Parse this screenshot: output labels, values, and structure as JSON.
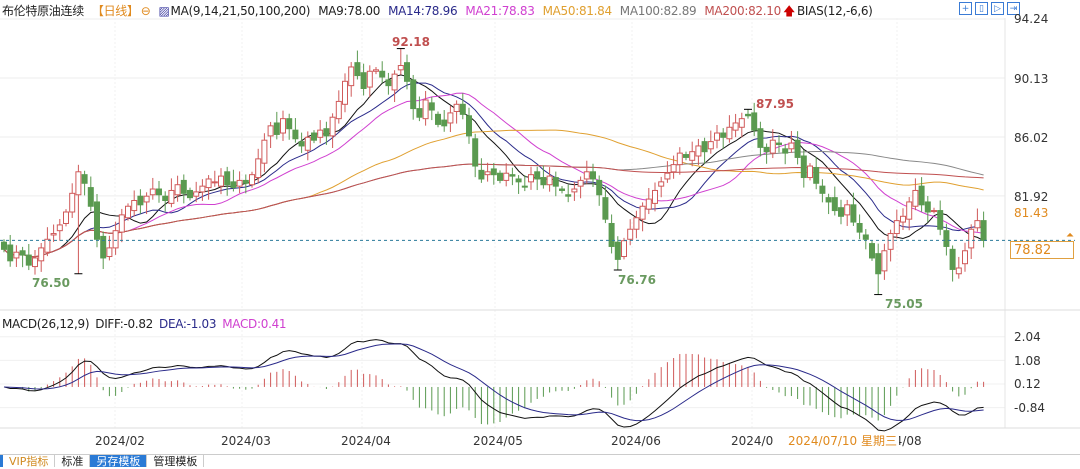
{
  "header": {
    "title": "布伦特原油连续",
    "period": "【日线】",
    "ma_label": "MA(9,14,21,50,100,200)",
    "ma": [
      {
        "text": "MA9:78.00",
        "color": "#222222"
      },
      {
        "text": "MA14:78.96",
        "color": "#2a2a8a"
      },
      {
        "text": "MA21:78.83",
        "color": "#d040d0"
      },
      {
        "text": "MA50:81.84",
        "color": "#e0a030"
      },
      {
        "text": "MA100:82.89",
        "color": "#777777"
      },
      {
        "text": "MA200:82.10",
        "color": "#c05050"
      }
    ],
    "bias_label": "BIAS(12,-6,6)",
    "tool_icons": [
      "crosshair-icon",
      "zoom-in-icon",
      "play-icon",
      "exit-icon"
    ]
  },
  "price_axis": {
    "ticks": [
      "94.24",
      "90.13",
      "86.02",
      "81.92"
    ],
    "tick_values": [
      94.24,
      90.13,
      86.02,
      81.92
    ],
    "marker_label": "81.43",
    "current_price": "78.82"
  },
  "annotations": {
    "high1": "92.18",
    "low1": "76.50",
    "low2": "76.76",
    "high2": "87.95",
    "low3": "75.05"
  },
  "macd": {
    "label": "MACD(26,12,9)",
    "diff": "DIFF:-0.82",
    "dea": "DEA:-1.03",
    "macd": "MACD:0.41",
    "ticks": [
      "2.04",
      "1.08",
      "0.12",
      "-0.84"
    ],
    "tick_values": [
      2.04,
      1.08,
      0.12,
      -0.84
    ]
  },
  "date_axis": {
    "labels": [
      "2024/02",
      "2024/03",
      "2024/04",
      "2024/05",
      "2024/06",
      "2024/0",
      "24/08"
    ],
    "crosshair_date": "2024/07/10 星期三"
  },
  "tabs": [
    "VIP指标",
    "标准",
    "另存模板",
    "管理模板"
  ],
  "colors": {
    "up": "#d05a5a",
    "down": "#5a9a50",
    "dashed": "#2a7a9a",
    "accent": "#e08a1e"
  },
  "chart_data": {
    "type": "candlestick",
    "title": "布伦特原油连续 日线",
    "ylim": [
      73.5,
      95.0
    ],
    "close": [
      78.2,
      77.4,
      78.0,
      77.8,
      77.1,
      77.6,
      78.3,
      78.9,
      79.3,
      79.9,
      80.8,
      82.1,
      83.6,
      82.8,
      81.2,
      78.9,
      77.6,
      78.3,
      79.5,
      80.6,
      81.2,
      81.6,
      81.3,
      81.9,
      82.4,
      82.0,
      81.6,
      82.3,
      82.7,
      82.1,
      81.8,
      82.2,
      82.6,
      83.1,
      82.9,
      83.3,
      82.7,
      82.5,
      83.0,
      82.8,
      83.4,
      84.5,
      85.8,
      86.8,
      86.2,
      87.3,
      86.6,
      85.9,
      85.4,
      86.0,
      85.8,
      86.5,
      86.1,
      87.4,
      88.5,
      89.9,
      90.9,
      90.3,
      89.4,
      90.6,
      90.7,
      90.2,
      89.6,
      90.4,
      91.0,
      89.9,
      88.0,
      87.4,
      88.6,
      87.9,
      86.9,
      86.8,
      87.7,
      88.3,
      87.6,
      86.1,
      84.0,
      83.1,
      83.6,
      83.4,
      83.0,
      83.5,
      83.3,
      82.9,
      82.6,
      83.4,
      83.1,
      82.7,
      83.3,
      82.6,
      82.3,
      81.9,
      82.4,
      83.0,
      83.6,
      83.1,
      82.0,
      80.3,
      78.4,
      77.5,
      78.8,
      79.6,
      80.4,
      81.2,
      81.7,
      82.3,
      82.9,
      83.5,
      84.1,
      84.9,
      84.6,
      85.0,
      85.4,
      85.0,
      85.7,
      86.3,
      86.0,
      86.7,
      87.0,
      87.3,
      87.5,
      86.5,
      85.3,
      85.0,
      85.8,
      85.5,
      84.9,
      85.6,
      84.6,
      83.2,
      84.0,
      82.8,
      82.1,
      81.5,
      80.9,
      80.5,
      81.3,
      80.1,
      79.4,
      78.9,
      77.6,
      76.5,
      78.1,
      79.3,
      80.2,
      80.5,
      81.5,
      82.3,
      81.3,
      80.8,
      80.9,
      79.6,
      78.4,
      76.8,
      76.9,
      78.1,
      79.6,
      80.2,
      78.82
    ],
    "extremes": [
      {
        "label": "92.18",
        "value": 92.18,
        "index": 64,
        "kind": "high"
      },
      {
        "label": "76.50",
        "value": 76.5,
        "index": 12,
        "kind": "low"
      },
      {
        "label": "76.76",
        "value": 76.76,
        "index": 99,
        "kind": "low"
      },
      {
        "label": "87.95",
        "value": 87.95,
        "index": 120,
        "kind": "high"
      },
      {
        "label": "75.05",
        "value": 75.05,
        "index": 141,
        "kind": "low"
      }
    ]
  }
}
